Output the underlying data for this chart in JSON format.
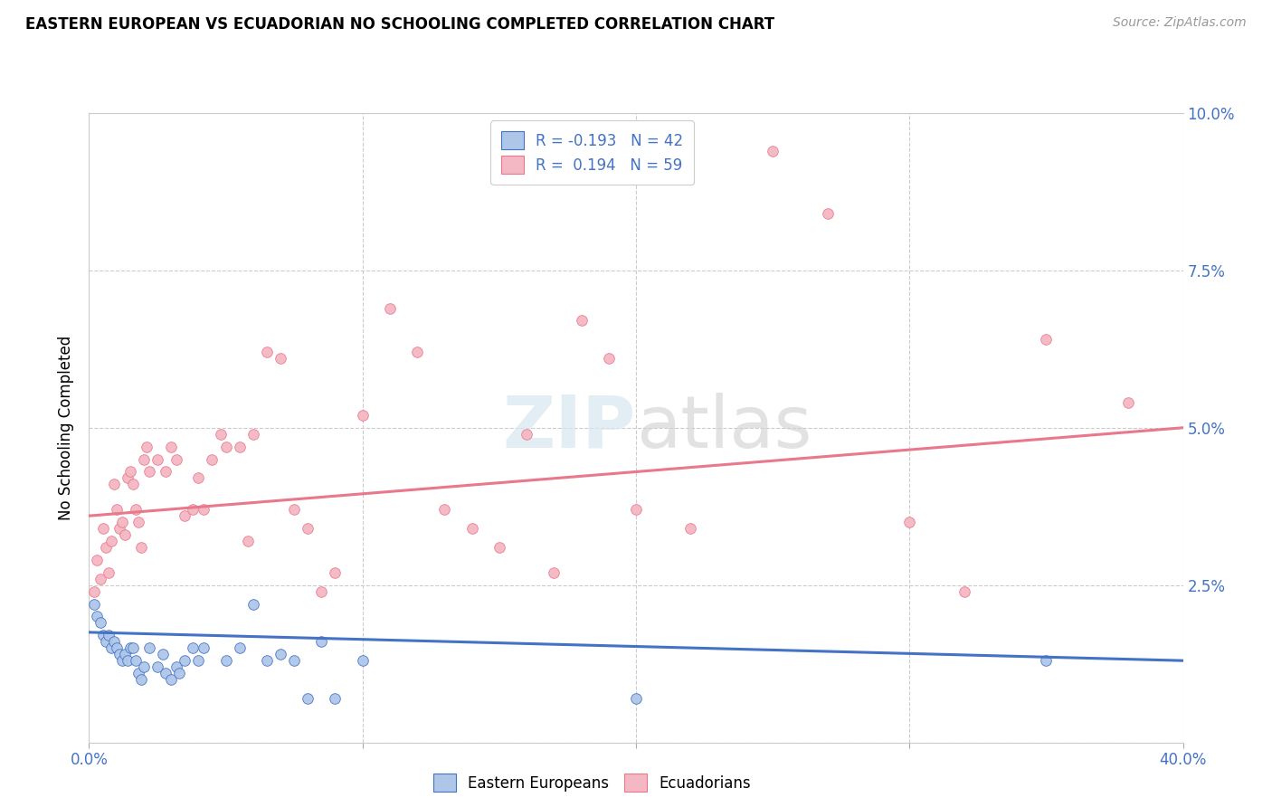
{
  "title": "EASTERN EUROPEAN VS ECUADORIAN NO SCHOOLING COMPLETED CORRELATION CHART",
  "source": "Source: ZipAtlas.com",
  "ylabel": "No Schooling Completed",
  "xlim": [
    0.0,
    0.4
  ],
  "ylim": [
    0.0,
    0.1
  ],
  "watermark_zip": "ZIP",
  "watermark_atlas": "atlas",
  "legend_line1": "R = -0.193   N = 42",
  "legend_line2": "R =  0.194   N = 59",
  "blue_color": "#4472c4",
  "pink_color": "#e8788a",
  "blue_scatter_color": "#aec6e8",
  "pink_scatter_color": "#f4b8c4",
  "blue_points": [
    [
      0.002,
      0.022
    ],
    [
      0.003,
      0.02
    ],
    [
      0.004,
      0.019
    ],
    [
      0.005,
      0.017
    ],
    [
      0.006,
      0.016
    ],
    [
      0.007,
      0.017
    ],
    [
      0.008,
      0.015
    ],
    [
      0.009,
      0.016
    ],
    [
      0.01,
      0.015
    ],
    [
      0.011,
      0.014
    ],
    [
      0.012,
      0.013
    ],
    [
      0.013,
      0.014
    ],
    [
      0.014,
      0.013
    ],
    [
      0.015,
      0.015
    ],
    [
      0.016,
      0.015
    ],
    [
      0.017,
      0.013
    ],
    [
      0.018,
      0.011
    ],
    [
      0.019,
      0.01
    ],
    [
      0.02,
      0.012
    ],
    [
      0.022,
      0.015
    ],
    [
      0.025,
      0.012
    ],
    [
      0.027,
      0.014
    ],
    [
      0.028,
      0.011
    ],
    [
      0.03,
      0.01
    ],
    [
      0.032,
      0.012
    ],
    [
      0.033,
      0.011
    ],
    [
      0.035,
      0.013
    ],
    [
      0.038,
      0.015
    ],
    [
      0.04,
      0.013
    ],
    [
      0.042,
      0.015
    ],
    [
      0.05,
      0.013
    ],
    [
      0.055,
      0.015
    ],
    [
      0.06,
      0.022
    ],
    [
      0.065,
      0.013
    ],
    [
      0.07,
      0.014
    ],
    [
      0.075,
      0.013
    ],
    [
      0.08,
      0.007
    ],
    [
      0.085,
      0.016
    ],
    [
      0.09,
      0.007
    ],
    [
      0.1,
      0.013
    ],
    [
      0.2,
      0.007
    ],
    [
      0.35,
      0.013
    ]
  ],
  "pink_points": [
    [
      0.002,
      0.024
    ],
    [
      0.003,
      0.029
    ],
    [
      0.004,
      0.026
    ],
    [
      0.005,
      0.034
    ],
    [
      0.006,
      0.031
    ],
    [
      0.007,
      0.027
    ],
    [
      0.008,
      0.032
    ],
    [
      0.009,
      0.041
    ],
    [
      0.01,
      0.037
    ],
    [
      0.011,
      0.034
    ],
    [
      0.012,
      0.035
    ],
    [
      0.013,
      0.033
    ],
    [
      0.014,
      0.042
    ],
    [
      0.015,
      0.043
    ],
    [
      0.016,
      0.041
    ],
    [
      0.017,
      0.037
    ],
    [
      0.018,
      0.035
    ],
    [
      0.019,
      0.031
    ],
    [
      0.02,
      0.045
    ],
    [
      0.021,
      0.047
    ],
    [
      0.022,
      0.043
    ],
    [
      0.025,
      0.045
    ],
    [
      0.028,
      0.043
    ],
    [
      0.03,
      0.047
    ],
    [
      0.032,
      0.045
    ],
    [
      0.035,
      0.036
    ],
    [
      0.038,
      0.037
    ],
    [
      0.04,
      0.042
    ],
    [
      0.042,
      0.037
    ],
    [
      0.045,
      0.045
    ],
    [
      0.048,
      0.049
    ],
    [
      0.05,
      0.047
    ],
    [
      0.055,
      0.047
    ],
    [
      0.058,
      0.032
    ],
    [
      0.06,
      0.049
    ],
    [
      0.065,
      0.062
    ],
    [
      0.07,
      0.061
    ],
    [
      0.075,
      0.037
    ],
    [
      0.08,
      0.034
    ],
    [
      0.085,
      0.024
    ],
    [
      0.09,
      0.027
    ],
    [
      0.1,
      0.052
    ],
    [
      0.11,
      0.069
    ],
    [
      0.12,
      0.062
    ],
    [
      0.13,
      0.037
    ],
    [
      0.14,
      0.034
    ],
    [
      0.15,
      0.031
    ],
    [
      0.16,
      0.049
    ],
    [
      0.17,
      0.027
    ],
    [
      0.18,
      0.067
    ],
    [
      0.19,
      0.061
    ],
    [
      0.2,
      0.037
    ],
    [
      0.22,
      0.034
    ],
    [
      0.25,
      0.094
    ],
    [
      0.27,
      0.084
    ],
    [
      0.3,
      0.035
    ],
    [
      0.32,
      0.024
    ],
    [
      0.35,
      0.064
    ],
    [
      0.38,
      0.054
    ]
  ],
  "blue_line": {
    "x0": 0.0,
    "y0": 0.0175,
    "x1": 0.4,
    "y1": 0.013
  },
  "pink_line": {
    "x0": 0.0,
    "y0": 0.036,
    "x1": 0.4,
    "y1": 0.05
  }
}
